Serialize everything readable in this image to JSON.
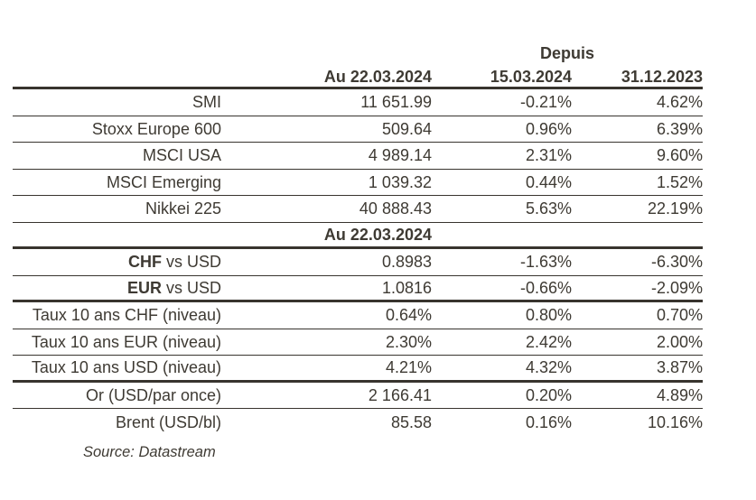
{
  "colors": {
    "ink": "#3e3a33",
    "rule": "#38342e"
  },
  "header": {
    "depuis": "Depuis",
    "date_current": "Au 22.03.2024",
    "date_week": "15.03.2024",
    "date_ytd": "31.12.2023"
  },
  "section2_header": "Au 22.03.2024",
  "rows": [
    {
      "label": "SMI",
      "value": "11 651.99",
      "since_week": "-0.21%",
      "since_ytd": "4.62%"
    },
    {
      "label": "Stoxx Europe 600",
      "value": "509.64",
      "since_week": "0.96%",
      "since_ytd": "6.39%"
    },
    {
      "label": "MSCI USA",
      "value": "4 989.14",
      "since_week": "2.31%",
      "since_ytd": "9.60%"
    },
    {
      "label": "MSCI Emerging",
      "value": "1 039.32",
      "since_week": "0.44%",
      "since_ytd": "1.52%"
    },
    {
      "label": "Nikkei 225",
      "value": "40 888.43",
      "since_week": "5.63%",
      "since_ytd": "22.19%"
    },
    {
      "label_bold": "CHF",
      "label_rest": "vs USD",
      "value": "0.8983",
      "since_week": "-1.63%",
      "since_ytd": "-6.30%"
    },
    {
      "label_bold": "EUR",
      "label_rest": "vs USD",
      "value": "1.0816",
      "since_week": "-0.66%",
      "since_ytd": "-2.09%"
    },
    {
      "label": "Taux 10 ans CHF (niveau)",
      "value": "0.64%",
      "since_week": "0.80%",
      "since_ytd": "0.70%"
    },
    {
      "label": "Taux 10 ans EUR (niveau)",
      "value": "2.30%",
      "since_week": "2.42%",
      "since_ytd": "2.00%"
    },
    {
      "label": "Taux 10 ans USD (niveau)",
      "value": "4.21%",
      "since_week": "4.32%",
      "since_ytd": "3.87%"
    },
    {
      "label": "Or (USD/par once)",
      "value": "2 166.41",
      "since_week": "0.20%",
      "since_ytd": "4.89%"
    },
    {
      "label": "Brent (USD/bl)",
      "value": "85.58",
      "since_week": "0.16%",
      "since_ytd": "10.16%"
    }
  ],
  "source": "Source: Datastream"
}
